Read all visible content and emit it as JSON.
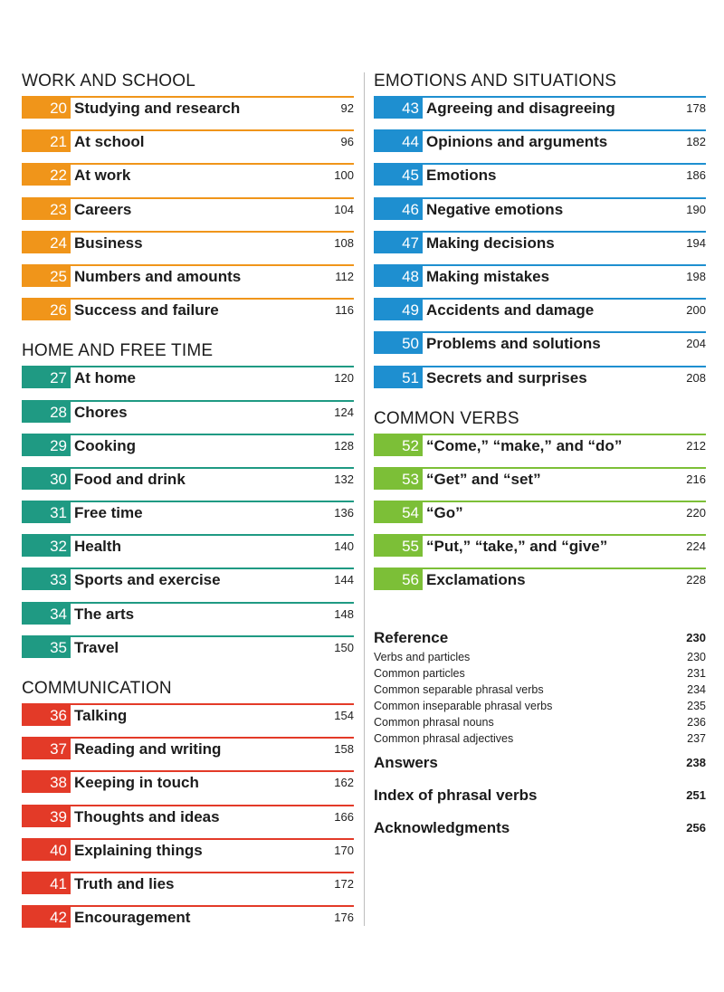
{
  "colors": {
    "work": "#f0951a",
    "home": "#1f9a83",
    "communication": "#e33a28",
    "emotions": "#1e8fd0",
    "verbs": "#7cbf37"
  },
  "sections": {
    "work": {
      "title": "WORK AND SCHOOL",
      "entries": [
        {
          "num": "20",
          "title": "Studying and research",
          "page": "92"
        },
        {
          "num": "21",
          "title": "At school",
          "page": "96"
        },
        {
          "num": "22",
          "title": "At work",
          "page": "100"
        },
        {
          "num": "23",
          "title": "Careers",
          "page": "104"
        },
        {
          "num": "24",
          "title": "Business",
          "page": "108"
        },
        {
          "num": "25",
          "title": "Numbers and amounts",
          "page": "112"
        },
        {
          "num": "26",
          "title": "Success and failure",
          "page": "116"
        }
      ]
    },
    "home": {
      "title": "HOME AND FREE TIME",
      "entries": [
        {
          "num": "27",
          "title": "At home",
          "page": "120"
        },
        {
          "num": "28",
          "title": "Chores",
          "page": "124"
        },
        {
          "num": "29",
          "title": "Cooking",
          "page": "128"
        },
        {
          "num": "30",
          "title": "Food and drink",
          "page": "132"
        },
        {
          "num": "31",
          "title": "Free time",
          "page": "136"
        },
        {
          "num": "32",
          "title": "Health",
          "page": "140"
        },
        {
          "num": "33",
          "title": "Sports and exercise",
          "page": "144"
        },
        {
          "num": "34",
          "title": "The arts",
          "page": "148"
        },
        {
          "num": "35",
          "title": "Travel",
          "page": "150"
        }
      ]
    },
    "communication": {
      "title": "COMMUNICATION",
      "entries": [
        {
          "num": "36",
          "title": "Talking",
          "page": "154"
        },
        {
          "num": "37",
          "title": "Reading and writing",
          "page": "158"
        },
        {
          "num": "38",
          "title": "Keeping in touch",
          "page": "162"
        },
        {
          "num": "39",
          "title": "Thoughts and ideas",
          "page": "166"
        },
        {
          "num": "40",
          "title": "Explaining things",
          "page": "170"
        },
        {
          "num": "41",
          "title": "Truth and lies",
          "page": "172"
        },
        {
          "num": "42",
          "title": "Encouragement",
          "page": "176"
        }
      ]
    },
    "emotions": {
      "title": "EMOTIONS AND SITUATIONS",
      "entries": [
        {
          "num": "43",
          "title": "Agreeing and disagreeing",
          "page": "178"
        },
        {
          "num": "44",
          "title": "Opinions and arguments",
          "page": "182"
        },
        {
          "num": "45",
          "title": "Emotions",
          "page": "186"
        },
        {
          "num": "46",
          "title": "Negative emotions",
          "page": "190"
        },
        {
          "num": "47",
          "title": "Making decisions",
          "page": "194"
        },
        {
          "num": "48",
          "title": "Making mistakes",
          "page": "198"
        },
        {
          "num": "49",
          "title": "Accidents and damage",
          "page": "200"
        },
        {
          "num": "50",
          "title": "Problems and solutions",
          "page": "204"
        },
        {
          "num": "51",
          "title": "Secrets and surprises",
          "page": "208"
        }
      ]
    },
    "verbs": {
      "title": "COMMON VERBS",
      "entries": [
        {
          "num": "52",
          "title": "“Come,” “make,” and “do”",
          "page": "212"
        },
        {
          "num": "53",
          "title": "“Get” and “set”",
          "page": "216"
        },
        {
          "num": "54",
          "title": "“Go”",
          "page": "220"
        },
        {
          "num": "55",
          "title": "“Put,” “take,” and “give”",
          "page": "224"
        },
        {
          "num": "56",
          "title": "Exclamations",
          "page": "228"
        }
      ]
    }
  },
  "reference": {
    "title": "Reference",
    "page": "230",
    "items": [
      {
        "title": "Verbs and particles",
        "page": "230"
      },
      {
        "title": "Common particles",
        "page": "231"
      },
      {
        "title": "Common separable phrasal verbs",
        "page": "234"
      },
      {
        "title": "Common inseparable phrasal verbs",
        "page": "235"
      },
      {
        "title": "Common phrasal nouns",
        "page": "236"
      },
      {
        "title": "Common phrasal adjectives",
        "page": "237"
      }
    ]
  },
  "back_matter": [
    {
      "title": "Answers",
      "page": "238"
    },
    {
      "title": "Index of phrasal verbs",
      "page": "251"
    },
    {
      "title": "Acknowledgments",
      "page": "256"
    }
  ]
}
